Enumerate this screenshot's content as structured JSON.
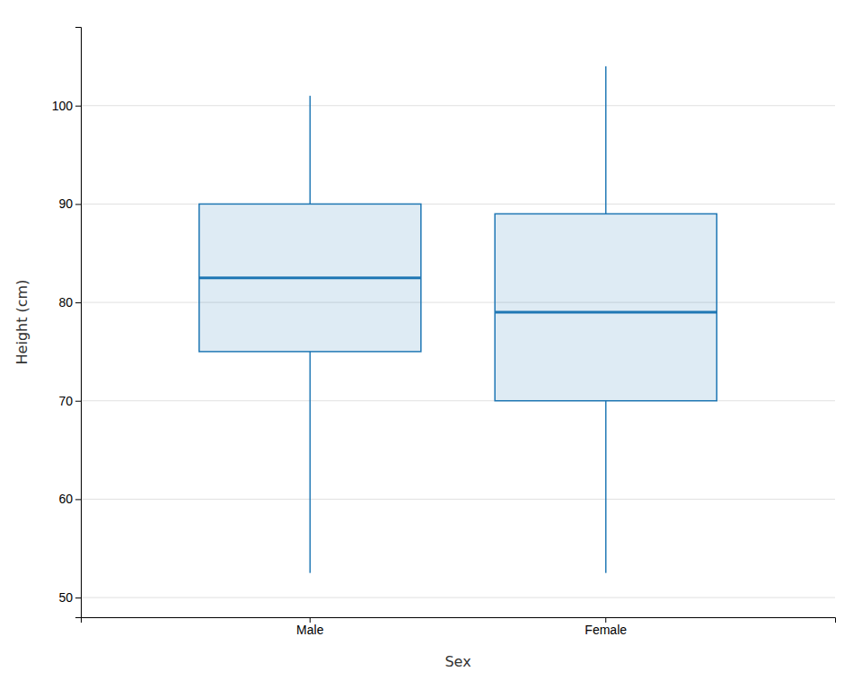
{
  "chart_data": {
    "type": "box",
    "xlabel": "Sex",
    "ylabel": "Height (cm)",
    "categories": [
      "Male",
      "Female"
    ],
    "whislo": [
      52.5,
      52.5
    ],
    "q1": [
      75.0,
      70.0
    ],
    "median": [
      82.5,
      79.0
    ],
    "q3": [
      90.0,
      89.0
    ],
    "whishi": [
      101.0,
      104.0
    ],
    "ylim": [
      48,
      108
    ],
    "yticks": [
      50,
      60,
      70,
      80,
      90,
      100
    ],
    "grid": true
  }
}
